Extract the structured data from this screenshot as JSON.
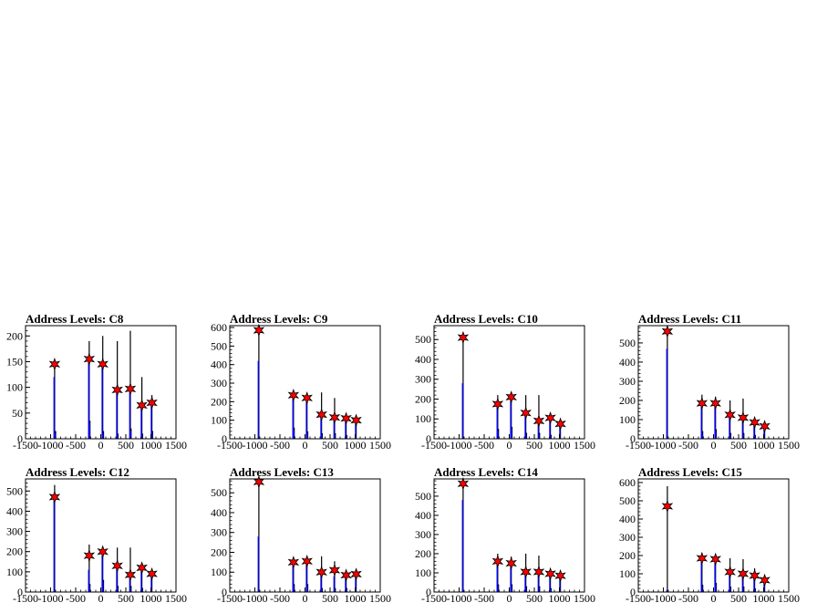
{
  "chart_data": [
    {
      "type": "bar",
      "title": "Address Levels: C8",
      "xlim": [
        -1500,
        1500
      ],
      "ylim": [
        0,
        220
      ],
      "xticks": [
        "-1500",
        "-1000",
        "-500",
        "0",
        "500",
        "1000",
        "1500"
      ],
      "yticks": [
        "0",
        "50",
        "100",
        "150",
        "200"
      ],
      "spikes": [
        {
          "x": -920,
          "black": 150,
          "blue": 120
        },
        {
          "x": -900,
          "black": 15,
          "blue": 10
        },
        {
          "x": -230,
          "black": 190,
          "blue": 150
        },
        {
          "x": -215,
          "black": 35,
          "blue": 30
        },
        {
          "x": 40,
          "black": 200,
          "blue": 140
        },
        {
          "x": 55,
          "black": 15,
          "blue": 10
        },
        {
          "x": 330,
          "black": 190,
          "blue": 90
        },
        {
          "x": 345,
          "black": 10,
          "blue": 8
        },
        {
          "x": 590,
          "black": 210,
          "blue": 90
        },
        {
          "x": 605,
          "black": 20,
          "blue": 15
        },
        {
          "x": 820,
          "black": 120,
          "blue": 60
        },
        {
          "x": 835,
          "black": 10,
          "blue": 8
        },
        {
          "x": 1020,
          "black": 85,
          "blue": 65
        },
        {
          "x": 1035,
          "black": 15,
          "blue": 10
        }
      ],
      "peaks": [
        {
          "x": -920,
          "y": 145
        },
        {
          "x": -230,
          "y": 155
        },
        {
          "x": 40,
          "y": 145
        },
        {
          "x": 330,
          "y": 95
        },
        {
          "x": 590,
          "y": 97
        },
        {
          "x": 820,
          "y": 65
        },
        {
          "x": 1020,
          "y": 70
        }
      ]
    },
    {
      "type": "bar",
      "title": "Address Levels: C9",
      "xlim": [
        -1500,
        1500
      ],
      "ylim": [
        0,
        610
      ],
      "xticks": [
        "-1500",
        "-1000",
        "-500",
        "0",
        "500",
        "1000",
        "1500"
      ],
      "yticks": [
        "0",
        "100",
        "200",
        "300",
        "400",
        "500",
        "600"
      ],
      "spikes": [
        {
          "x": -920,
          "black": 590,
          "blue": 420
        },
        {
          "x": -230,
          "black": 250,
          "blue": 230
        },
        {
          "x": -215,
          "black": 60,
          "blue": 50
        },
        {
          "x": 40,
          "black": 240,
          "blue": 210
        },
        {
          "x": 55,
          "black": 40,
          "blue": 30
        },
        {
          "x": 330,
          "black": 250,
          "blue": 120
        },
        {
          "x": 345,
          "black": 30,
          "blue": 20
        },
        {
          "x": 590,
          "black": 220,
          "blue": 110
        },
        {
          "x": 605,
          "black": 30,
          "blue": 20
        },
        {
          "x": 820,
          "black": 130,
          "blue": 100
        },
        {
          "x": 835,
          "black": 20,
          "blue": 15
        },
        {
          "x": 1020,
          "black": 110,
          "blue": 95
        }
      ],
      "peaks": [
        {
          "x": -920,
          "y": 585
        },
        {
          "x": -230,
          "y": 235
        },
        {
          "x": 40,
          "y": 220
        },
        {
          "x": 330,
          "y": 130
        },
        {
          "x": 590,
          "y": 115
        },
        {
          "x": 820,
          "y": 110
        },
        {
          "x": 1020,
          "y": 100
        }
      ]
    },
    {
      "type": "bar",
      "title": "Address Levels: C10",
      "xlim": [
        -1500,
        1500
      ],
      "ylim": [
        0,
        570
      ],
      "xticks": [
        "-1500",
        "-1000",
        "-500",
        "0",
        "500",
        "1000",
        "1500"
      ],
      "yticks": [
        "0",
        "100",
        "200",
        "300",
        "400",
        "500"
      ],
      "spikes": [
        {
          "x": -920,
          "black": 520,
          "blue": 280
        },
        {
          "x": -230,
          "black": 220,
          "blue": 160
        },
        {
          "x": -215,
          "black": 50,
          "blue": 40
        },
        {
          "x": 40,
          "black": 225,
          "blue": 200
        },
        {
          "x": 55,
          "black": 60,
          "blue": 50
        },
        {
          "x": 330,
          "black": 220,
          "blue": 120
        },
        {
          "x": 345,
          "black": 30,
          "blue": 20
        },
        {
          "x": 590,
          "black": 220,
          "blue": 90
        },
        {
          "x": 605,
          "black": 30,
          "blue": 20
        },
        {
          "x": 820,
          "black": 120,
          "blue": 100
        },
        {
          "x": 835,
          "black": 20,
          "blue": 15
        },
        {
          "x": 1020,
          "black": 90,
          "blue": 75
        }
      ],
      "peaks": [
        {
          "x": -920,
          "y": 510
        },
        {
          "x": -230,
          "y": 175
        },
        {
          "x": 40,
          "y": 210
        },
        {
          "x": 330,
          "y": 130
        },
        {
          "x": 590,
          "y": 90
        },
        {
          "x": 820,
          "y": 105
        },
        {
          "x": 1020,
          "y": 75
        }
      ]
    },
    {
      "type": "bar",
      "title": "Address Levels: C11",
      "xlim": [
        -1500,
        1500
      ],
      "ylim": [
        0,
        590
      ],
      "xticks": [
        "-1500",
        "-1000",
        "-500",
        "0",
        "500",
        "1000",
        "1500"
      ],
      "yticks": [
        "0",
        "100",
        "200",
        "300",
        "400",
        "500"
      ],
      "spikes": [
        {
          "x": -920,
          "black": 570,
          "blue": 470
        },
        {
          "x": -230,
          "black": 230,
          "blue": 180
        },
        {
          "x": -215,
          "black": 40,
          "blue": 30
        },
        {
          "x": 40,
          "black": 220,
          "blue": 175
        },
        {
          "x": 55,
          "black": 50,
          "blue": 40
        },
        {
          "x": 330,
          "black": 200,
          "blue": 120
        },
        {
          "x": 345,
          "black": 30,
          "blue": 20
        },
        {
          "x": 590,
          "black": 210,
          "blue": 100
        },
        {
          "x": 605,
          "black": 30,
          "blue": 20
        },
        {
          "x": 820,
          "black": 110,
          "blue": 90
        },
        {
          "x": 835,
          "black": 20,
          "blue": 15
        },
        {
          "x": 1020,
          "black": 80,
          "blue": 65
        }
      ],
      "peaks": [
        {
          "x": -920,
          "y": 560
        },
        {
          "x": -230,
          "y": 185
        },
        {
          "x": 40,
          "y": 185
        },
        {
          "x": 330,
          "y": 125
        },
        {
          "x": 590,
          "y": 110
        },
        {
          "x": 820,
          "y": 85
        },
        {
          "x": 1020,
          "y": 65
        }
      ]
    },
    {
      "type": "bar",
      "title": "Address Levels: C12",
      "xlim": [
        -1500,
        1500
      ],
      "ylim": [
        0,
        560
      ],
      "xticks": [
        "-1500",
        "-1000",
        "-500",
        "0",
        "500",
        "1000",
        "1500"
      ],
      "yticks": [
        "0",
        "100",
        "200",
        "300",
        "400",
        "500"
      ],
      "spikes": [
        {
          "x": -920,
          "black": 530,
          "blue": 480
        },
        {
          "x": -230,
          "black": 235,
          "blue": 110
        },
        {
          "x": -215,
          "black": 40,
          "blue": 30
        },
        {
          "x": 40,
          "black": 220,
          "blue": 180
        },
        {
          "x": 55,
          "black": 60,
          "blue": 50
        },
        {
          "x": 330,
          "black": 220,
          "blue": 130
        },
        {
          "x": 345,
          "black": 30,
          "blue": 20
        },
        {
          "x": 590,
          "black": 220,
          "blue": 90
        },
        {
          "x": 605,
          "black": 30,
          "blue": 20
        },
        {
          "x": 820,
          "black": 130,
          "blue": 110
        },
        {
          "x": 835,
          "black": 20,
          "blue": 15
        },
        {
          "x": 1020,
          "black": 100,
          "blue": 90
        }
      ],
      "peaks": [
        {
          "x": -920,
          "y": 470
        },
        {
          "x": -230,
          "y": 180
        },
        {
          "x": 40,
          "y": 200
        },
        {
          "x": 330,
          "y": 130
        },
        {
          "x": 590,
          "y": 85
        },
        {
          "x": 820,
          "y": 120
        },
        {
          "x": 1020,
          "y": 90
        }
      ]
    },
    {
      "type": "bar",
      "title": "Address Levels: C13",
      "xlim": [
        -1500,
        1500
      ],
      "ylim": [
        0,
        570
      ],
      "xticks": [
        "-1500",
        "-1000",
        "-500",
        "0",
        "500",
        "1000",
        "1500"
      ],
      "yticks": [
        "0",
        "100",
        "200",
        "300",
        "400",
        "500"
      ],
      "spikes": [
        {
          "x": -920,
          "black": 570,
          "blue": 280
        },
        {
          "x": -230,
          "black": 170,
          "blue": 150
        },
        {
          "x": -215,
          "black": 40,
          "blue": 30
        },
        {
          "x": 40,
          "black": 165,
          "blue": 150
        },
        {
          "x": 55,
          "black": 40,
          "blue": 30
        },
        {
          "x": 330,
          "black": 180,
          "blue": 90
        },
        {
          "x": 345,
          "black": 20,
          "blue": 15
        },
        {
          "x": 590,
          "black": 155,
          "blue": 80
        },
        {
          "x": 605,
          "black": 20,
          "blue": 15
        },
        {
          "x": 820,
          "black": 100,
          "blue": 85
        },
        {
          "x": 835,
          "black": 20,
          "blue": 15
        },
        {
          "x": 1020,
          "black": 100,
          "blue": 90
        }
      ],
      "peaks": [
        {
          "x": -920,
          "y": 555
        },
        {
          "x": -230,
          "y": 150
        },
        {
          "x": 40,
          "y": 155
        },
        {
          "x": 330,
          "y": 100
        },
        {
          "x": 590,
          "y": 110
        },
        {
          "x": 820,
          "y": 85
        },
        {
          "x": 1020,
          "y": 90
        }
      ]
    },
    {
      "type": "bar",
      "title": "Address Levels: C14",
      "xlim": [
        -1500,
        1500
      ],
      "ylim": [
        0,
        590
      ],
      "xticks": [
        "-1500",
        "-1000",
        "-500",
        "0",
        "500",
        "1000",
        "1500"
      ],
      "yticks": [
        "0",
        "100",
        "200",
        "300",
        "400",
        "500"
      ],
      "spikes": [
        {
          "x": -920,
          "black": 580,
          "blue": 480
        },
        {
          "x": -230,
          "black": 200,
          "blue": 170
        },
        {
          "x": -215,
          "black": 40,
          "blue": 30
        },
        {
          "x": 40,
          "black": 185,
          "blue": 160
        },
        {
          "x": 55,
          "black": 40,
          "blue": 30
        },
        {
          "x": 330,
          "black": 200,
          "blue": 100
        },
        {
          "x": 345,
          "black": 30,
          "blue": 20
        },
        {
          "x": 590,
          "black": 190,
          "blue": 90
        },
        {
          "x": 605,
          "black": 30,
          "blue": 20
        },
        {
          "x": 820,
          "black": 110,
          "blue": 90
        },
        {
          "x": 835,
          "black": 20,
          "blue": 15
        },
        {
          "x": 1020,
          "black": 90,
          "blue": 80
        }
      ],
      "peaks": [
        {
          "x": -920,
          "y": 565
        },
        {
          "x": -230,
          "y": 160
        },
        {
          "x": 40,
          "y": 150
        },
        {
          "x": 330,
          "y": 105
        },
        {
          "x": 590,
          "y": 105
        },
        {
          "x": 820,
          "y": 95
        },
        {
          "x": 1020,
          "y": 85
        }
      ]
    },
    {
      "type": "bar",
      "title": "Address Levels: C15",
      "xlim": [
        -1500,
        1500
      ],
      "ylim": [
        0,
        620
      ],
      "xticks": [
        "-1500",
        "-1000",
        "-500",
        "0",
        "500",
        "1000",
        "1500"
      ],
      "yticks": [
        "0",
        "100",
        "200",
        "300",
        "400",
        "500",
        "600"
      ],
      "spikes": [
        {
          "x": -920,
          "black": 580,
          "blue": 10
        },
        {
          "x": -230,
          "black": 200,
          "blue": 170
        },
        {
          "x": -215,
          "black": 40,
          "blue": 30
        },
        {
          "x": 40,
          "black": 190,
          "blue": 160
        },
        {
          "x": 55,
          "black": 50,
          "blue": 40
        },
        {
          "x": 330,
          "black": 185,
          "blue": 110
        },
        {
          "x": 345,
          "black": 30,
          "blue": 20
        },
        {
          "x": 590,
          "black": 180,
          "blue": 90
        },
        {
          "x": 605,
          "black": 30,
          "blue": 20
        },
        {
          "x": 820,
          "black": 130,
          "blue": 90
        },
        {
          "x": 835,
          "black": 20,
          "blue": 15
        },
        {
          "x": 1020,
          "black": 80,
          "blue": 65
        }
      ],
      "peaks": [
        {
          "x": -920,
          "y": 470
        },
        {
          "x": -230,
          "y": 185
        },
        {
          "x": 40,
          "y": 180
        },
        {
          "x": 330,
          "y": 110
        },
        {
          "x": 590,
          "y": 100
        },
        {
          "x": 820,
          "y": 90
        },
        {
          "x": 1020,
          "y": 65
        }
      ]
    }
  ],
  "colors": {
    "background": "#ffffff",
    "frame": "#000000",
    "spike_primary": "#000000",
    "spike_secondary": "#0000ff",
    "marker_fill": "#ff0000",
    "marker_stroke": "#000000"
  }
}
